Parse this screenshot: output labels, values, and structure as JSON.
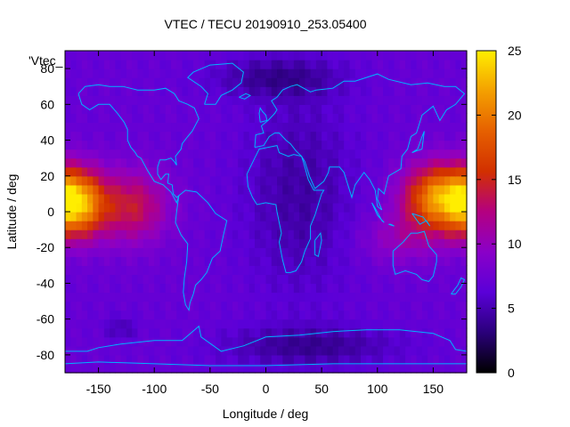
{
  "chart_data": {
    "type": "heatmap",
    "title": "VTEC / TECU 20190910_253.05400",
    "xlabel": "Longitude / deg",
    "ylabel": "Latitude / deg",
    "key_label": "'Vtec_",
    "xlim": [
      -180,
      180
    ],
    "ylim": [
      -90,
      90
    ],
    "x_ticks": [
      -150,
      -100,
      -50,
      0,
      50,
      100,
      150
    ],
    "y_ticks": [
      -80,
      -60,
      -40,
      -20,
      0,
      20,
      40,
      60,
      80
    ],
    "colorbar": {
      "min": 0,
      "max": 25,
      "ticks": [
        0,
        5,
        10,
        15,
        20,
        25
      ],
      "palette": [
        "#000000",
        "#2a007a",
        "#5a00d8",
        "#8a00c8",
        "#b40080",
        "#d23000",
        "#e66000",
        "#f4a000",
        "#ffee00"
      ]
    },
    "features": {
      "background_tec": 7,
      "hotspots": [
        {
          "lon": -170,
          "lat": 5,
          "peak_tec": 22,
          "sx": 18,
          "sy": 13
        },
        {
          "lon": -120,
          "lat": 3,
          "peak_tec": 14,
          "sx": 22,
          "sy": 14
        },
        {
          "lon": 155,
          "lat": 8,
          "peak_tec": 21,
          "sx": 22,
          "sy": 13
        },
        {
          "lon": 120,
          "lat": -15,
          "peak_tec": 10,
          "sx": 25,
          "sy": 10
        },
        {
          "lon": -130,
          "lat": -65,
          "peak_tec": 5,
          "sx": 10,
          "sy": 5
        }
      ],
      "lows": [
        {
          "lon": 30,
          "lat": 10,
          "depth_tec": 2.5,
          "sx": 35,
          "sy": 40
        },
        {
          "lon": 10,
          "lat": 75,
          "depth_tec": 3,
          "sx": 40,
          "sy": 8
        },
        {
          "lon": 40,
          "lat": -75,
          "depth_tec": 3,
          "sx": 55,
          "sy": 8
        }
      ]
    }
  }
}
